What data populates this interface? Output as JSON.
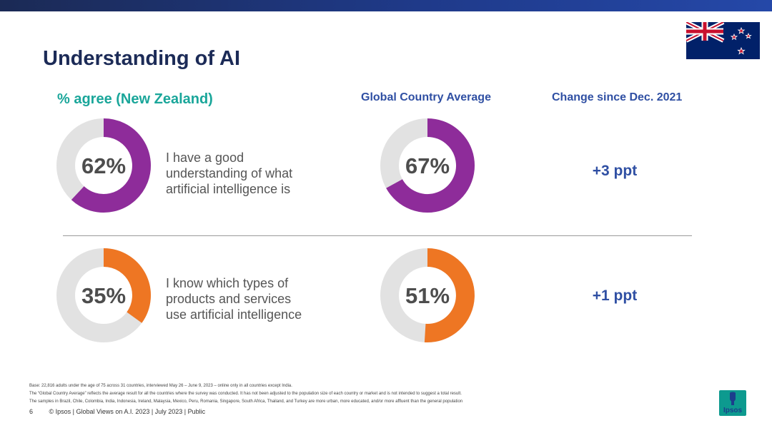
{
  "slide": {
    "title": "Understanding of AI",
    "header_left": "% agree (New Zealand)",
    "header_mid": "Global Country Average",
    "header_right": "Change since Dec. 2021"
  },
  "chart_data": {
    "type": "donut",
    "rows": [
      {
        "statement": [
          "I have a good",
          "understanding of what",
          "artificial intelligence is"
        ],
        "nz_value": 62,
        "nz_label": "62%",
        "global_value": 67,
        "global_label": "67%",
        "change": "+3 ppt",
        "color": "#8e2c9a"
      },
      {
        "statement": [
          "I know which types of",
          "products and services",
          "use artificial intelligence"
        ],
        "nz_value": 35,
        "nz_label": "35%",
        "global_value": 51,
        "global_label": "51%",
        "change": "+1 ppt",
        "color": "#ee7623"
      }
    ],
    "track_color": "#e2e2e2"
  },
  "footnotes": [
    "Base: 22,816 adults under the age of 75 across 31 countries, interviewed May 26 – June 9, 2023 – online only in all countries except India.",
    "The “Global Country Average” reflects the average result for all the countries where the survey was conducted. It has not been adjusted to the population size of each country or market and is not intended to suggest a total result.",
    "The samples in Brazil, Chile, Colombia, India, Indonesia, Ireland, Malaysia, Mexico, Peru, Romania, Singapore, South Africa, Thailand, and Turkey are more urban, more educated, and/or more affluent than the general population"
  ],
  "footer": {
    "page": "6",
    "text": "© Ipsos | Global Views on A.I. 2023 | July 2023 | Public"
  },
  "logo": {
    "text": "Ipsos"
  }
}
